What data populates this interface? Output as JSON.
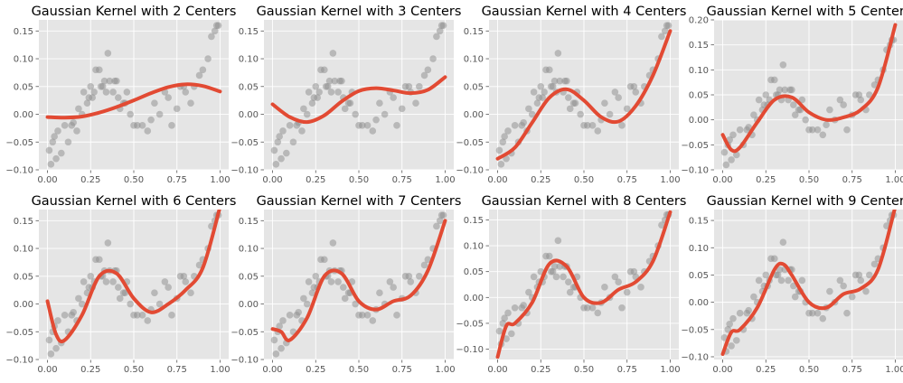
{
  "figure": {
    "background": "#ffffff",
    "panel_background": "#e5e5e5",
    "grid_color": "#ffffff",
    "point_color": "#8c8c8c",
    "line_color": "#E24A33",
    "grid": true,
    "layout": "2 rows x 4 columns"
  },
  "chart_data": [
    {
      "type": "scatter",
      "title": "Gaussian Kernel with 2 Centers",
      "xlim": [
        -0.05,
        1.05
      ],
      "ylim": [
        -0.1,
        0.17
      ],
      "xticks": [
        0.0,
        0.25,
        0.5,
        0.75,
        1.0
      ],
      "xtick_labels": [
        "0.00",
        "0.25",
        "0.50",
        "0.75",
        "1.00"
      ],
      "yticks": [
        -0.1,
        -0.05,
        0.0,
        0.05,
        0.1,
        0.15
      ],
      "ytick_labels": [
        "−0.10",
        "−0.05",
        "0.00",
        "0.05",
        "0.10",
        "0.15"
      ],
      "fit_line": {
        "x": [
          0.0,
          0.1,
          0.2,
          0.3,
          0.4,
          0.5,
          0.6,
          0.7,
          0.8,
          0.9,
          1.0
        ],
        "y": [
          -0.005,
          -0.006,
          -0.004,
          0.003,
          0.013,
          0.025,
          0.038,
          0.049,
          0.054,
          0.051,
          0.041
        ]
      }
    },
    {
      "type": "scatter",
      "title": "Gaussian Kernel with 3 Centers",
      "xlim": [
        -0.05,
        1.05
      ],
      "ylim": [
        -0.1,
        0.17
      ],
      "xticks": [
        0.0,
        0.25,
        0.5,
        0.75,
        1.0
      ],
      "xtick_labels": [
        "0.00",
        "0.25",
        "0.50",
        "0.75",
        "1.00"
      ],
      "yticks": [
        -0.1,
        -0.05,
        0.0,
        0.05,
        0.1,
        0.15
      ],
      "ytick_labels": [
        "−0.10",
        "−0.05",
        "0.00",
        "0.05",
        "0.10",
        "0.15"
      ],
      "fit_line": {
        "x": [
          0.0,
          0.1,
          0.2,
          0.3,
          0.4,
          0.5,
          0.6,
          0.7,
          0.8,
          0.9,
          1.0
        ],
        "y": [
          0.018,
          -0.005,
          -0.014,
          -0.002,
          0.023,
          0.042,
          0.047,
          0.043,
          0.038,
          0.044,
          0.067
        ]
      }
    },
    {
      "type": "scatter",
      "title": "Gaussian Kernel with 4 Centers",
      "xlim": [
        -0.05,
        1.05
      ],
      "ylim": [
        -0.1,
        0.17
      ],
      "xticks": [
        0.0,
        0.25,
        0.5,
        0.75,
        1.0
      ],
      "xtick_labels": [
        "0.00",
        "0.25",
        "0.50",
        "0.75",
        "1.00"
      ],
      "yticks": [
        -0.1,
        -0.05,
        0.0,
        0.05,
        0.1,
        0.15
      ],
      "ytick_labels": [
        "−0.10",
        "−0.05",
        "0.00",
        "0.05",
        "0.10",
        "0.15"
      ],
      "fit_line": {
        "x": [
          0.0,
          0.1,
          0.2,
          0.3,
          0.4,
          0.5,
          0.6,
          0.7,
          0.8,
          0.9,
          1.0
        ],
        "y": [
          -0.08,
          -0.06,
          -0.015,
          0.03,
          0.045,
          0.025,
          -0.005,
          -0.013,
          0.015,
          0.07,
          0.15
        ]
      }
    },
    {
      "type": "scatter",
      "title": "Gaussian Kernel with 5 Centers",
      "xlim": [
        -0.05,
        1.05
      ],
      "ylim": [
        -0.1,
        0.2
      ],
      "xticks": [
        0.0,
        0.25,
        0.5,
        0.75,
        1.0
      ],
      "xtick_labels": [
        "0.00",
        "0.25",
        "0.50",
        "0.75",
        "1.00"
      ],
      "yticks": [
        -0.1,
        -0.05,
        0.0,
        0.05,
        0.1,
        0.15,
        0.2
      ],
      "ytick_labels": [
        "−0.10",
        "−0.05",
        "0.00",
        "0.05",
        "0.10",
        "0.15",
        "0.20"
      ],
      "fit_line": {
        "x": [
          0.0,
          0.05,
          0.1,
          0.2,
          0.3,
          0.4,
          0.5,
          0.6,
          0.7,
          0.8,
          0.9,
          1.0
        ],
        "y": [
          -0.03,
          -0.06,
          -0.055,
          -0.005,
          0.04,
          0.045,
          0.015,
          0.0,
          0.005,
          0.02,
          0.065,
          0.19
        ]
      }
    },
    {
      "type": "scatter",
      "title": "Gaussian Kernel with 6 Centers",
      "xlim": [
        -0.05,
        1.05
      ],
      "ylim": [
        -0.1,
        0.17
      ],
      "xticks": [
        0.0,
        0.25,
        0.5,
        0.75,
        1.0
      ],
      "xtick_labels": [
        "0.00",
        "0.25",
        "0.50",
        "0.75",
        "1.00"
      ],
      "yticks": [
        -0.1,
        -0.05,
        0.0,
        0.05,
        0.1,
        0.15
      ],
      "ytick_labels": [
        "−0.10",
        "−0.05",
        "0.00",
        "0.05",
        "0.10",
        "0.15"
      ],
      "fit_line": {
        "x": [
          0.0,
          0.05,
          0.1,
          0.2,
          0.3,
          0.4,
          0.5,
          0.6,
          0.7,
          0.8,
          0.9,
          1.0
        ],
        "y": [
          0.005,
          -0.055,
          -0.065,
          -0.02,
          0.05,
          0.055,
          0.01,
          -0.015,
          0.0,
          0.025,
          0.065,
          0.175
        ]
      }
    },
    {
      "type": "scatter",
      "title": "Gaussian Kernel with 7 Centers",
      "xlim": [
        -0.05,
        1.05
      ],
      "ylim": [
        -0.1,
        0.17
      ],
      "xticks": [
        0.0,
        0.25,
        0.5,
        0.75,
        1.0
      ],
      "xtick_labels": [
        "0.00",
        "0.25",
        "0.50",
        "0.75",
        "1.00"
      ],
      "yticks": [
        -0.1,
        -0.05,
        0.0,
        0.05,
        0.1,
        0.15
      ],
      "ytick_labels": [
        "−0.10",
        "−0.05",
        "0.00",
        "0.05",
        "0.10",
        "0.15"
      ],
      "fit_line": {
        "x": [
          0.0,
          0.05,
          0.1,
          0.2,
          0.3,
          0.4,
          0.5,
          0.6,
          0.7,
          0.8,
          0.9,
          1.0
        ],
        "y": [
          -0.045,
          -0.05,
          -0.065,
          -0.025,
          0.05,
          0.055,
          0.005,
          -0.01,
          0.005,
          0.015,
          0.06,
          0.15
        ]
      }
    },
    {
      "type": "scatter",
      "title": "Gaussian Kernel with 8 Centers",
      "xlim": [
        -0.05,
        1.05
      ],
      "ylim": [
        -0.12,
        0.17
      ],
      "xticks": [
        0.0,
        0.25,
        0.5,
        0.75,
        1.0
      ],
      "xtick_labels": [
        "0.00",
        "0.25",
        "0.50",
        "0.75",
        "1.00"
      ],
      "yticks": [
        -0.1,
        -0.05,
        0.0,
        0.05,
        0.1,
        0.15
      ],
      "ytick_labels": [
        "−0.10",
        "−0.05",
        "0.00",
        "0.05",
        "0.10",
        "0.15"
      ],
      "fit_line": {
        "x": [
          0.0,
          0.05,
          0.1,
          0.2,
          0.3,
          0.4,
          0.5,
          0.6,
          0.7,
          0.8,
          0.9,
          1.0
        ],
        "y": [
          -0.115,
          -0.055,
          -0.05,
          -0.01,
          0.065,
          0.06,
          0.0,
          -0.01,
          0.015,
          0.03,
          0.07,
          0.165
        ]
      }
    },
    {
      "type": "scatter",
      "title": "Gaussian Kernel with 9 Centers",
      "xlim": [
        -0.05,
        1.05
      ],
      "ylim": [
        -0.105,
        0.17
      ],
      "xticks": [
        0.0,
        0.25,
        0.5,
        0.75,
        1.0
      ],
      "xtick_labels": [
        "0.00",
        "0.25",
        "0.50",
        "0.75",
        "1.00"
      ],
      "yticks": [
        -0.1,
        -0.05,
        0.0,
        0.05,
        0.1,
        0.15
      ],
      "ytick_labels": [
        "−0.10",
        "−0.05",
        "0.00",
        "0.05",
        "0.10",
        "0.15"
      ],
      "fit_line": {
        "x": [
          0.0,
          0.05,
          0.1,
          0.2,
          0.3,
          0.35,
          0.4,
          0.5,
          0.6,
          0.7,
          0.8,
          0.9,
          1.0
        ],
        "y": [
          -0.095,
          -0.055,
          -0.05,
          -0.01,
          0.06,
          0.07,
          0.05,
          0.0,
          -0.01,
          0.015,
          0.025,
          0.06,
          0.175
        ]
      }
    }
  ],
  "shared_scatter": {
    "x": [
      0.01,
      0.02,
      0.03,
      0.04,
      0.05,
      0.06,
      0.08,
      0.1,
      0.12,
      0.14,
      0.15,
      0.17,
      0.18,
      0.2,
      0.21,
      0.23,
      0.24,
      0.25,
      0.26,
      0.27,
      0.28,
      0.3,
      0.31,
      0.32,
      0.33,
      0.34,
      0.35,
      0.36,
      0.38,
      0.39,
      0.4,
      0.41,
      0.42,
      0.44,
      0.45,
      0.46,
      0.48,
      0.5,
      0.52,
      0.55,
      0.58,
      0.6,
      0.62,
      0.65,
      0.68,
      0.7,
      0.72,
      0.75,
      0.77,
      0.79,
      0.8,
      0.83,
      0.85,
      0.88,
      0.9,
      0.93,
      0.95,
      0.97,
      0.98,
      0.99
    ],
    "y": [
      -0.065,
      -0.09,
      -0.05,
      -0.04,
      -0.08,
      -0.03,
      -0.07,
      -0.02,
      -0.05,
      -0.02,
      -0.015,
      -0.03,
      0.01,
      0.0,
      0.04,
      0.02,
      0.03,
      0.05,
      0.03,
      0.04,
      0.08,
      0.08,
      0.05,
      0.05,
      0.06,
      0.04,
      0.11,
      0.06,
      0.04,
      0.06,
      0.06,
      0.03,
      0.01,
      0.02,
      0.02,
      0.04,
      0.0,
      -0.02,
      -0.02,
      -0.02,
      -0.03,
      -0.01,
      0.02,
      0.0,
      0.04,
      0.03,
      -0.02,
      0.01,
      0.05,
      0.05,
      0.04,
      0.02,
      0.05,
      0.07,
      0.08,
      0.1,
      0.14,
      0.15,
      0.16,
      0.16
    ]
  }
}
